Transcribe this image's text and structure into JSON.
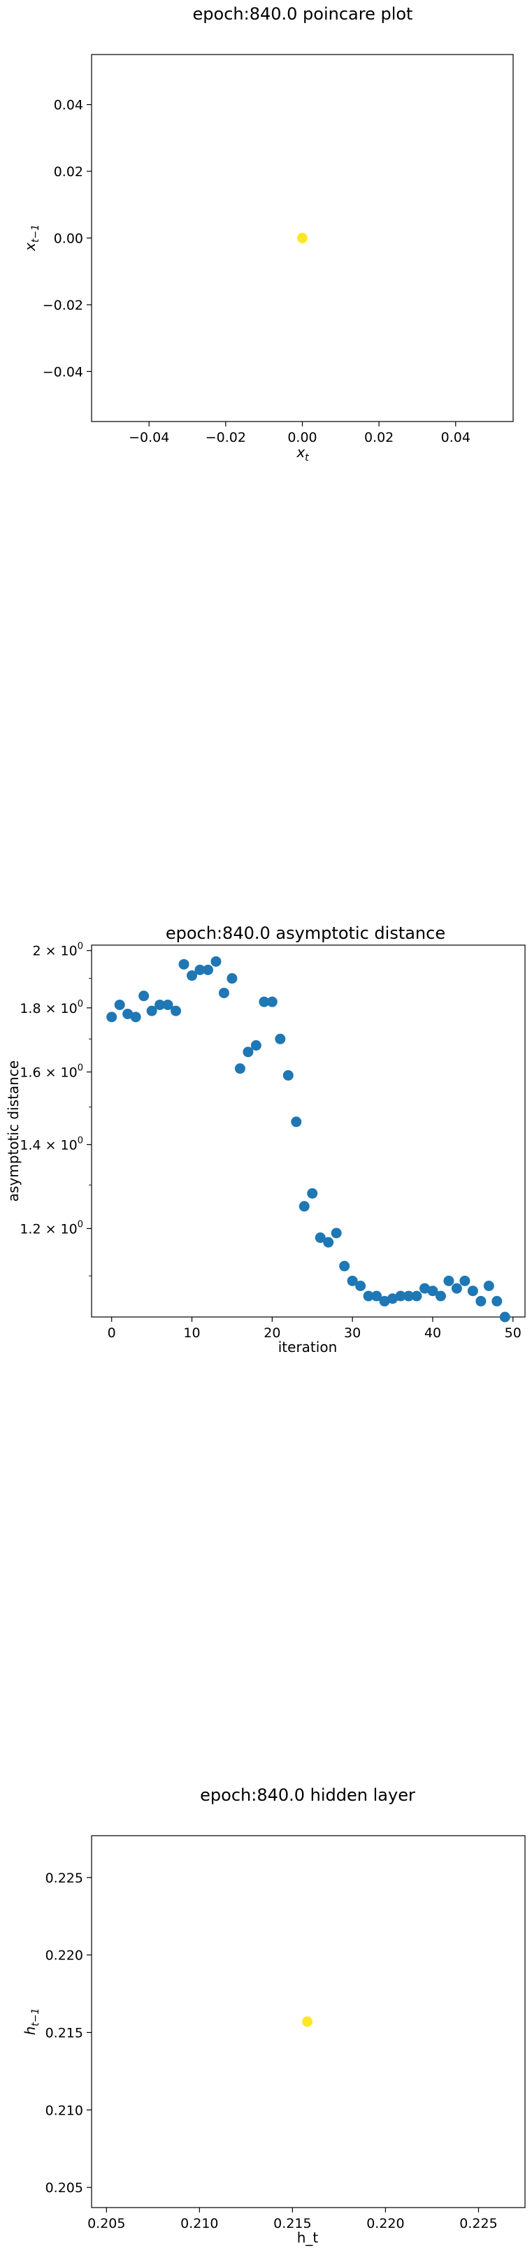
{
  "chart_data": [
    {
      "type": "scatter",
      "title": "epoch:840.0 poincare plot",
      "xlabel_main": "x",
      "xlabel_sub": "t",
      "ylabel_main": "x",
      "ylabel_sub": "t−1",
      "xlim": [
        -0.055,
        0.055
      ],
      "ylim": [
        -0.055,
        0.055
      ],
      "xticks": [
        -0.04,
        -0.02,
        0.0,
        0.02,
        0.04
      ],
      "xtick_labels": [
        "−0.04",
        "−0.02",
        "0.00",
        "0.02",
        "0.04"
      ],
      "yticks": [
        -0.04,
        -0.02,
        0.0,
        0.02,
        0.04
      ],
      "ytick_labels": [
        "−0.04",
        "−0.02",
        "0.00",
        "0.02",
        "0.04"
      ],
      "points": [
        {
          "x": 0.0,
          "y": 0.0
        }
      ],
      "point_color": "#fde725",
      "grid": false
    },
    {
      "type": "scatter",
      "title": "epoch:840.0 asymptotic distance",
      "xlabel": "iteration",
      "ylabel": "asymptotic distance",
      "yscale": "log",
      "xlim": [
        -2.5,
        51.5
      ],
      "ylim": [
        1.02,
        2.02
      ],
      "xticks": [
        0,
        10,
        20,
        30,
        40,
        50
      ],
      "xtick_labels": [
        "0",
        "10",
        "20",
        "30",
        "40",
        "50"
      ],
      "yticks": [
        1.2,
        1.4,
        1.6,
        1.8,
        2.0
      ],
      "ytick_labels": [
        {
          "base": "1.2 × 10",
          "exp": "0"
        },
        {
          "base": "1.4 × 10",
          "exp": "0"
        },
        {
          "base": "1.6 × 10",
          "exp": "0"
        },
        {
          "base": "1.8 × 10",
          "exp": "0"
        },
        {
          "base": "2 × 10",
          "exp": "0"
        }
      ],
      "x": [
        0,
        1,
        2,
        3,
        4,
        5,
        6,
        7,
        8,
        9,
        10,
        11,
        12,
        13,
        14,
        15,
        16,
        17,
        18,
        19,
        20,
        21,
        22,
        23,
        24,
        25,
        26,
        27,
        28,
        29,
        30,
        31,
        32,
        33,
        34,
        35,
        36,
        37,
        38,
        39,
        40,
        41,
        42,
        43,
        44,
        45,
        46,
        47,
        48,
        49
      ],
      "y": [
        1.77,
        1.81,
        1.78,
        1.77,
        1.84,
        1.79,
        1.81,
        1.81,
        1.79,
        1.95,
        1.91,
        1.93,
        1.93,
        1.96,
        1.85,
        1.9,
        1.61,
        1.66,
        1.68,
        1.82,
        1.82,
        1.7,
        1.59,
        1.46,
        1.25,
        1.28,
        1.18,
        1.17,
        1.19,
        1.12,
        1.09,
        1.08,
        1.06,
        1.06,
        1.05,
        1.055,
        1.06,
        1.06,
        1.06,
        1.075,
        1.07,
        1.06,
        1.09,
        1.075,
        1.09,
        1.07,
        1.05,
        1.08,
        1.05,
        1.02
      ],
      "point_color": "#1f77b4",
      "grid": false
    },
    {
      "type": "scatter",
      "title": "epoch:840.0 hidden layer",
      "xlabel": "h_t",
      "ylabel_main": "h",
      "ylabel_sub": "t−1",
      "xlim": [
        0.2042,
        0.2275
      ],
      "ylim": [
        0.2037,
        0.2277
      ],
      "xticks": [
        0.205,
        0.21,
        0.215,
        0.22,
        0.225
      ],
      "xtick_labels": [
        "0.205",
        "0.210",
        "0.215",
        "0.220",
        "0.225"
      ],
      "yticks": [
        0.205,
        0.21,
        0.215,
        0.22,
        0.225
      ],
      "ytick_labels": [
        "0.205",
        "0.210",
        "0.215",
        "0.220",
        "0.225"
      ],
      "points": [
        {
          "x": 0.2158,
          "y": 0.2157
        }
      ],
      "point_color": "#fde725",
      "grid": false
    }
  ]
}
